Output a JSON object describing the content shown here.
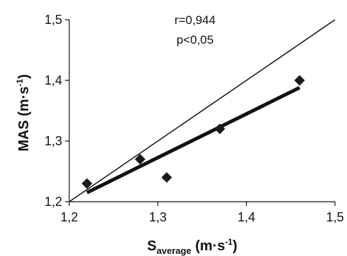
{
  "chart_data": {
    "type": "scatter",
    "xlabel": {
      "main": "S",
      "sub": "average",
      "units_open": " (m·s",
      "sup": "-1",
      "units_close": ")"
    },
    "ylabel": {
      "main": "MAS (m·s",
      "sup": "-1",
      "close": ")"
    },
    "xlim": [
      1.2,
      1.5
    ],
    "ylim": [
      1.2,
      1.5
    ],
    "x_ticks": [
      "1,2",
      "1,3",
      "1,4",
      "1,5"
    ],
    "y_ticks": [
      "1,2",
      "1,3",
      "1,4",
      "1,5"
    ],
    "grid": false,
    "points": [
      {
        "x": 1.22,
        "y": 1.23
      },
      {
        "x": 1.28,
        "y": 1.27
      },
      {
        "x": 1.31,
        "y": 1.24
      },
      {
        "x": 1.37,
        "y": 1.32
      },
      {
        "x": 1.46,
        "y": 1.4
      }
    ],
    "identity_line": {
      "from": [
        1.2,
        1.2
      ],
      "to": [
        1.5,
        1.5
      ]
    },
    "regression_line": {
      "from": [
        1.22,
        1.215
      ],
      "to": [
        1.46,
        1.388
      ]
    },
    "annotations": [
      "r=0,944",
      "p<0,05"
    ],
    "colors": {
      "marker": "#1a1a1a",
      "line": "#111111"
    }
  }
}
